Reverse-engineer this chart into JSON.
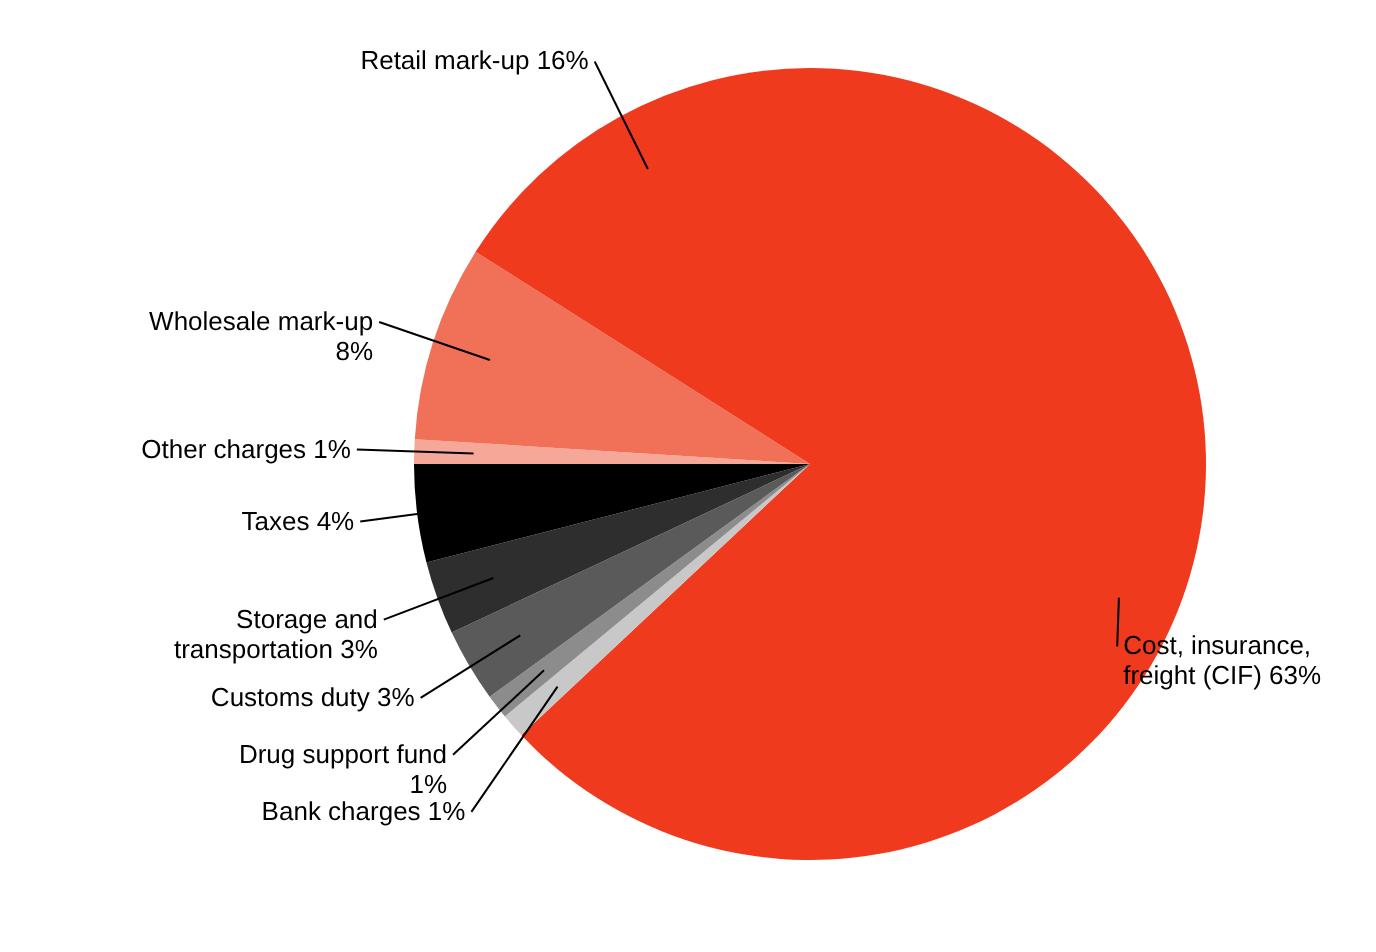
{
  "chart_data": {
    "type": "pie",
    "categories": [
      "Cost, insurance, freight (CIF)",
      "Bank charges",
      "Drug support fund",
      "Customs duty",
      "Storage and transportation",
      "Taxes",
      "Other charges",
      "Wholesale mark-up",
      "Retail mark-up"
    ],
    "values": [
      63,
      1,
      1,
      3,
      3,
      4,
      1,
      8,
      16
    ],
    "value_labels": [
      "63%",
      "1%",
      "1%",
      "3%",
      "3%",
      "4%",
      "1%",
      "8%",
      "16%"
    ],
    "colors": [
      "#f03a1e",
      "#c8c8c8",
      "#8c8c8c",
      "#5a5a5a",
      "#2e2e2e",
      "#000000",
      "#f5a898",
      "#f07058",
      "#f03a1e"
    ]
  }
}
